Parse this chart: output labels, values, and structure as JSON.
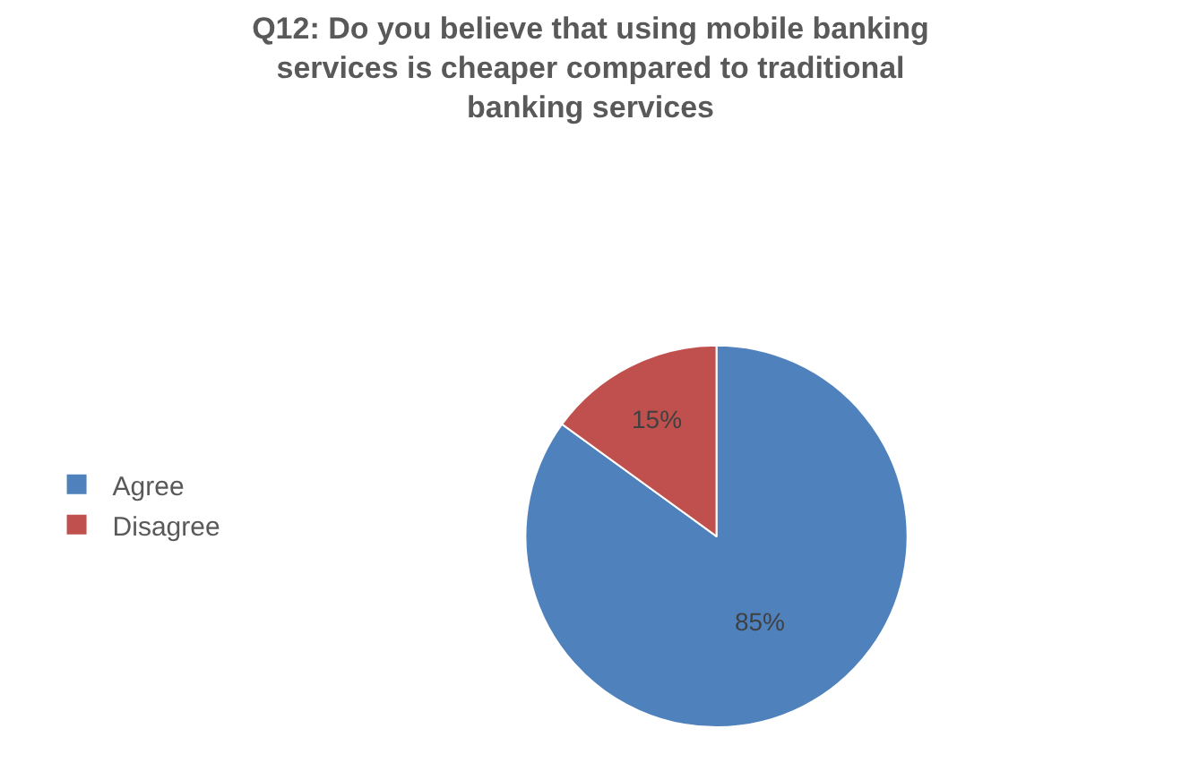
{
  "chart_data": {
    "type": "pie",
    "title": "Q12: Do you believe that using mobile banking\nservices is cheaper compared to traditional\nbanking services",
    "categories": [
      "Agree",
      "Disagree"
    ],
    "values": [
      85,
      15
    ],
    "colors": [
      "#4f81bd",
      "#c0504d"
    ],
    "value_labels": [
      "85%",
      "15%"
    ],
    "legend": "left"
  }
}
